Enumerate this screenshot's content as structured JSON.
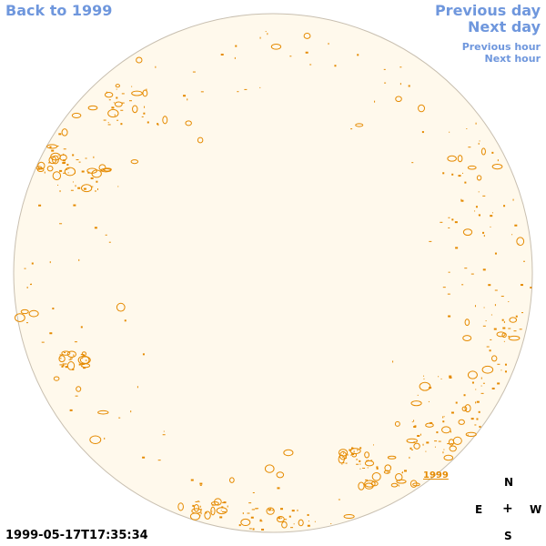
{
  "nav": {
    "back": "Back to 1999",
    "previous_day": "Previous day",
    "next_day": "Next day",
    "previous_hour": "Previous hour",
    "next_hour": "Next hour"
  },
  "timestamp": "1999-05-17T17:35:34",
  "map_label": "1999",
  "compass": {
    "n": "N",
    "s": "S",
    "e": "E",
    "w": "W",
    "center": "+"
  },
  "colors": {
    "disk_fill": "#fff9ec",
    "disk_edge": "#c8bfb0",
    "contour": "#e58a00",
    "link": "#6f97dd"
  }
}
